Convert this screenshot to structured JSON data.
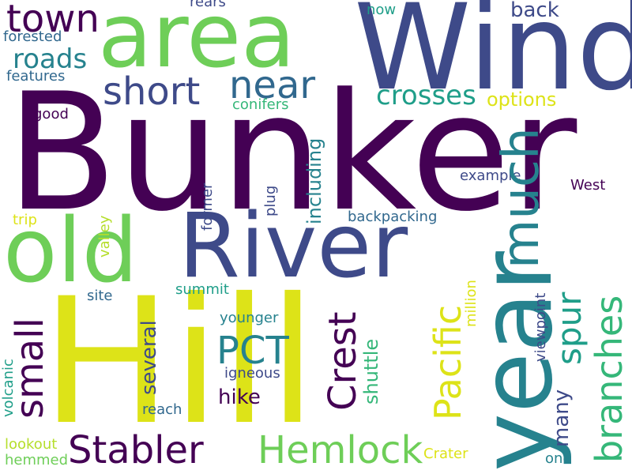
{
  "palette": {
    "dark_purple": "#440154",
    "indigo": "#3e4a89",
    "blue_teal": "#31688e",
    "teal": "#26828e",
    "green_teal": "#1f9e89",
    "green": "#35b779",
    "light_green": "#6ece58",
    "lime": "#b5de2b",
    "yellow": "#dde318",
    "background": "#ffffff"
  },
  "words": {
    "bunker": "Bunker",
    "hill": "Hill",
    "wind": "Wind",
    "area": "area",
    "year": "year",
    "river": "River",
    "old": "old",
    "town": "town",
    "short": "short",
    "near": "near",
    "roads": "roads",
    "crosses": "crosses",
    "options": "options",
    "back": "back",
    "now": "now",
    "rears": "rears",
    "forested": "forested",
    "features": "features",
    "conifers": "conifers",
    "good": "good",
    "much": "much",
    "branches": "branches",
    "spur": "spur",
    "pacific": "Pacific",
    "crest": "Crest",
    "pct": "PCT",
    "many": "many",
    "including": "including",
    "example": "example",
    "west": "West",
    "backpacking": "backpacking",
    "plug": "plug",
    "former": "former",
    "small": "small",
    "several": "several",
    "shuttle": "shuttle",
    "hike": "hike",
    "stabler": "Stabler",
    "hemlock": "Hemlock",
    "trip": "trip",
    "valley": "valley",
    "site": "site",
    "summit": "summit",
    "younger": "younger",
    "igneous": "igneous",
    "reach": "reach",
    "volcanic": "volcanic",
    "lookout": "lookout",
    "hemmed": "hemmed",
    "million": "million",
    "viewpoint": "viewpoint",
    "crater": "Crater",
    "one": "one"
  }
}
